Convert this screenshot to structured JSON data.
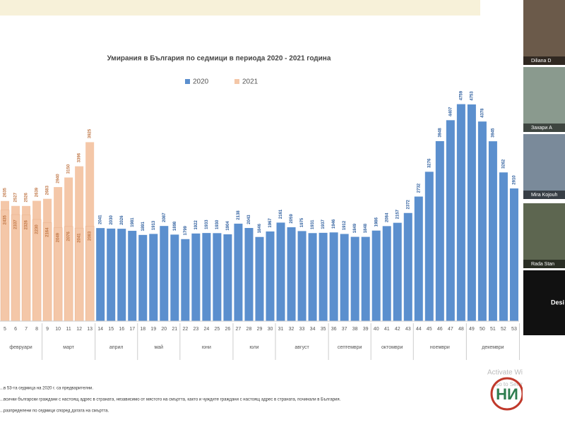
{
  "chart_data": {
    "type": "bar",
    "title": "Умирания в България по седмици в периода 2020 - 2021 година",
    "categories": [
      "5",
      "6",
      "7",
      "8",
      "9",
      "10",
      "11",
      "12",
      "13",
      "14",
      "15",
      "16",
      "17",
      "18",
      "19",
      "20",
      "21",
      "22",
      "23",
      "24",
      "25",
      "26",
      "27",
      "28",
      "29",
      "30",
      "31",
      "32",
      "33",
      "34",
      "35",
      "36",
      "37",
      "38",
      "39",
      "40",
      "41",
      "42",
      "43",
      "44",
      "45",
      "46",
      "47",
      "48",
      "49",
      "50",
      "51",
      "52",
      "53"
    ],
    "series": [
      {
        "name": "2020",
        "color": "#5b8fce",
        "values": [
          2435,
          2337,
          2326,
          2230,
          2164,
          2049,
          2076,
          2041,
          2083,
          2041,
          2030,
          2026,
          1981,
          1891,
          1913,
          2087,
          1898,
          1799,
          1922,
          1933,
          1930,
          1904,
          2138,
          2043,
          1846,
          1967,
          2161,
          2059,
          1975,
          1931,
          1937,
          1946,
          1912,
          1849,
          1848,
          1986,
          2084,
          2157,
          2372,
          2732,
          3276,
          3948,
          4407,
          4759,
          4753,
          4378,
          3945,
          3262,
          2910
        ]
      },
      {
        "name": "2021",
        "color": "#f4c7a8",
        "values": [
          2635,
          2527,
          2526,
          2639,
          2683,
          2940,
          3150,
          3396,
          3925,
          null,
          null,
          null,
          null,
          null,
          null,
          null,
          null,
          null,
          null,
          null,
          null,
          null,
          null,
          null,
          null,
          null,
          null,
          null,
          null,
          null,
          null,
          null,
          null,
          null,
          null,
          null,
          null,
          null,
          null,
          null,
          null,
          null,
          null,
          null,
          null,
          null,
          null,
          null,
          null
        ]
      }
    ],
    "months": [
      {
        "name": "февруари",
        "first": "5",
        "last": "8"
      },
      {
        "name": "март",
        "first": "9",
        "last": "13"
      },
      {
        "name": "април",
        "first": "14",
        "last": "17"
      },
      {
        "name": "май",
        "first": "18",
        "last": "21"
      },
      {
        "name": "юни",
        "first": "22",
        "last": "26"
      },
      {
        "name": "юли",
        "first": "27",
        "last": "30"
      },
      {
        "name": "август",
        "first": "31",
        "last": "35"
      },
      {
        "name": "септември",
        "first": "36",
        "last": "39"
      },
      {
        "name": "октомври",
        "first": "40",
        "last": "43"
      },
      {
        "name": "ноември",
        "first": "44",
        "last": "48"
      },
      {
        "name": "декември",
        "first": "49",
        "last": "53"
      }
    ],
    "ylim": [
      0,
      5000
    ]
  },
  "notes": [
    "...в 53-та седмица на 2020 г. са предварителни.",
    "...всички български граждани с настоящ адрес в страната, независимо от мястото на смъртта, както и чуждите граждани с настоящ адрес в страната, починали в България.",
    "...разпределени по седмици според датата на смъртта."
  ],
  "watermark": [
    "Activate Windo",
    "Go to Settings to act"
  ],
  "logo": "НИ",
  "participants": [
    "Diliana D",
    "Захари А",
    "Mira Kojouh",
    "Rada Stan",
    "Desi"
  ]
}
